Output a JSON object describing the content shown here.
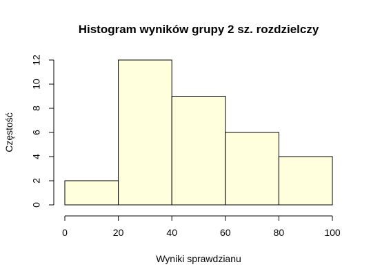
{
  "chart_data": {
    "type": "bar",
    "title": "Histogram wyników grupy 2 sz. rozdzielczy",
    "xlabel": "Wyniki sprawdzianu",
    "ylabel": "Częstość",
    "bins": [
      {
        "from": 0,
        "to": 20,
        "count": 2
      },
      {
        "from": 20,
        "to": 40,
        "count": 12
      },
      {
        "from": 40,
        "to": 60,
        "count": 9
      },
      {
        "from": 60,
        "to": 80,
        "count": 6
      },
      {
        "from": 80,
        "to": 100,
        "count": 4
      }
    ],
    "xlim": [
      0,
      100
    ],
    "ylim": [
      0,
      12
    ],
    "x_ticks": [
      0,
      20,
      40,
      60,
      80,
      100
    ],
    "y_ticks": [
      0,
      2,
      4,
      6,
      8,
      10,
      12
    ],
    "bar_color": "#FFFFDD",
    "grid": false,
    "legend": "none"
  }
}
